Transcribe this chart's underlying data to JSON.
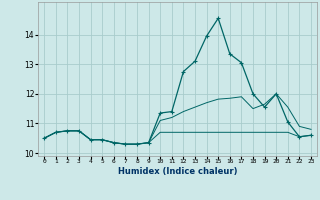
{
  "xlabel": "Humidex (Indice chaleur)",
  "background_color": "#cde8e8",
  "grid_color": "#a8cccc",
  "line_color": "#006666",
  "x": [
    0,
    1,
    2,
    3,
    4,
    5,
    6,
    7,
    8,
    9,
    10,
    11,
    12,
    13,
    14,
    15,
    16,
    17,
    18,
    19,
    20,
    21,
    22,
    23
  ],
  "y_main": [
    10.5,
    10.7,
    10.75,
    10.75,
    10.45,
    10.45,
    10.35,
    10.3,
    10.3,
    10.35,
    11.35,
    11.4,
    12.75,
    13.1,
    13.95,
    14.55,
    13.35,
    13.05,
    12.0,
    11.55,
    12.0,
    11.05,
    10.55,
    10.6
  ],
  "y_low": [
    10.5,
    10.7,
    10.75,
    10.75,
    10.45,
    10.45,
    10.35,
    10.3,
    10.3,
    10.35,
    10.7,
    10.7,
    10.7,
    10.7,
    10.7,
    10.7,
    10.7,
    10.7,
    10.7,
    10.7,
    10.7,
    10.7,
    10.55,
    10.6
  ],
  "y_high": [
    10.5,
    10.7,
    10.75,
    10.75,
    10.45,
    10.45,
    10.35,
    10.3,
    10.3,
    10.35,
    11.1,
    11.2,
    11.4,
    11.55,
    11.7,
    11.82,
    11.85,
    11.9,
    11.5,
    11.65,
    12.0,
    11.55,
    10.9,
    10.8
  ],
  "ylim": [
    9.9,
    15.1
  ],
  "yticks": [
    10,
    11,
    12,
    13,
    14
  ],
  "xlim": [
    -0.5,
    23.5
  ],
  "figsize": [
    3.2,
    2.0
  ],
  "dpi": 100
}
